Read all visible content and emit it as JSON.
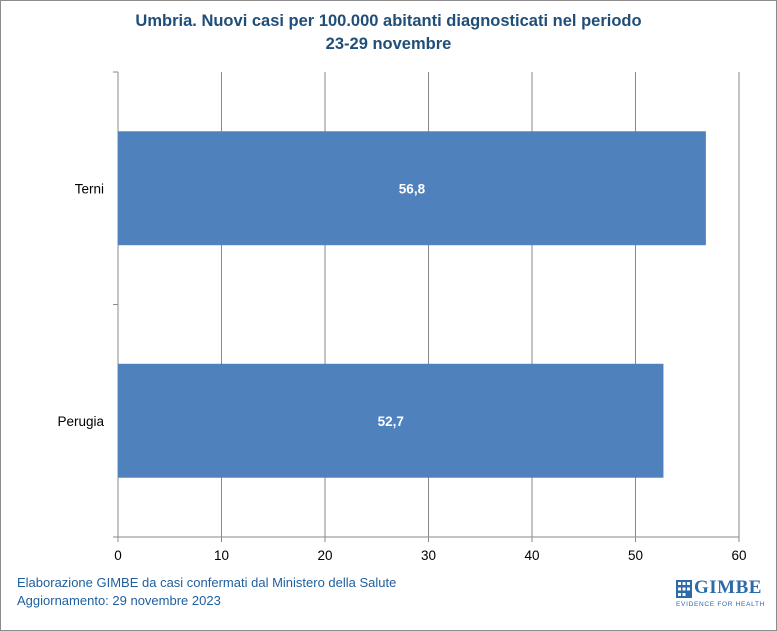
{
  "title": {
    "line1": "Umbria. Nuovi casi per 100.000 abitanti diagnosticati nel periodo",
    "line2": "23-29 novembre"
  },
  "chart_data": {
    "type": "bar",
    "orientation": "horizontal",
    "categories": [
      "Terni",
      "Perugia"
    ],
    "values": [
      56.8,
      52.7
    ],
    "value_labels": [
      "56,8",
      "52,7"
    ],
    "xlim": [
      0,
      60
    ],
    "xticks": [
      0,
      10,
      20,
      30,
      40,
      50,
      60
    ],
    "grid": "vertical",
    "bar_color": "#4f81bd",
    "xlabel": "",
    "ylabel": ""
  },
  "footer": {
    "line1": "Elaborazione GIMBE da casi confermati dal Ministero della Salute",
    "line2": "Aggiornamento: 29 novembre 2023"
  },
  "logo": {
    "name": "GIMBE",
    "tagline": "EVIDENCE FOR HEALTH"
  }
}
